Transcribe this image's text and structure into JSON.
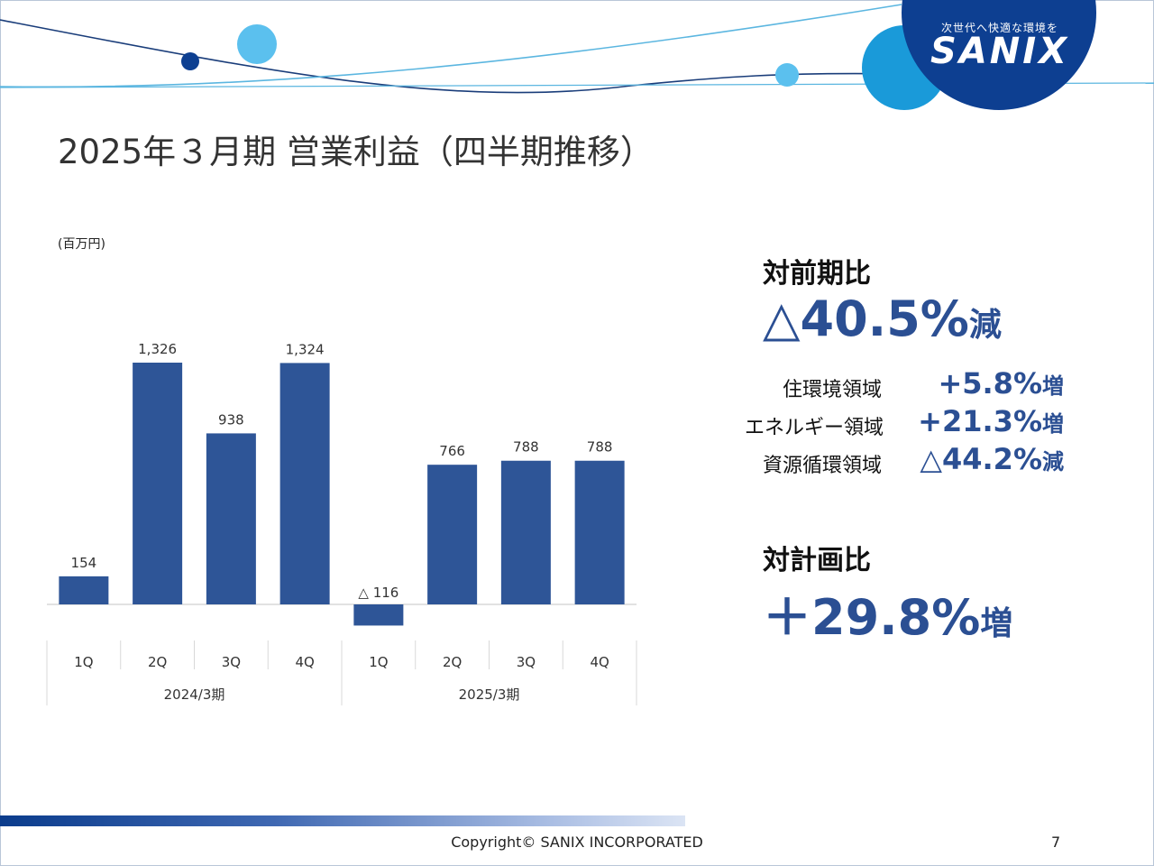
{
  "logo": {
    "tagline": "次世代へ快適な環境を",
    "name": "SANIX"
  },
  "title": "2025年３月期 営業利益（四半期推移）",
  "unit_label": "(百万円)",
  "chart_data": {
    "type": "bar",
    "title": "",
    "xlabel": "",
    "ylabel": "",
    "categories": [
      "1Q",
      "2Q",
      "3Q",
      "4Q",
      "1Q",
      "2Q",
      "3Q",
      "4Q"
    ],
    "groups": [
      {
        "label": "2024/3期",
        "categories": [
          "1Q",
          "2Q",
          "3Q",
          "4Q"
        ]
      },
      {
        "label": "2025/3期",
        "categories": [
          "1Q",
          "2Q",
          "3Q",
          "4Q"
        ]
      }
    ],
    "values": [
      154,
      1326,
      938,
      1324,
      -116,
      766,
      788,
      788
    ],
    "data_labels": [
      "154",
      "1,326",
      "938",
      "1,324",
      "△ 116",
      "766",
      "788",
      "788"
    ],
    "ylim": [
      -150,
      1350
    ],
    "grid": false,
    "bar_color": "#2e5597"
  },
  "summary": {
    "prev_year": {
      "heading": "対前期比",
      "value": "△40.5%",
      "suffix": "減"
    },
    "segments": [
      {
        "label": "住環境領域",
        "value": "+5.8%",
        "suffix": "増"
      },
      {
        "label": "エネルギー領域",
        "value": "+21.3%",
        "suffix": "増"
      },
      {
        "label": "資源循環領域",
        "value": "△44.2%",
        "suffix": "減"
      }
    ],
    "plan": {
      "heading": "対計画比",
      "value": "＋29.8%",
      "suffix": "増"
    }
  },
  "footer": {
    "copyright": "Copyright©  SANIX INCORPORATED",
    "page_number": "7"
  },
  "colors": {
    "accent": "#2b4f93",
    "logo_blue": "#0d3f91",
    "light_blue": "#5bc0ee",
    "mid_blue": "#1a9ad9"
  }
}
